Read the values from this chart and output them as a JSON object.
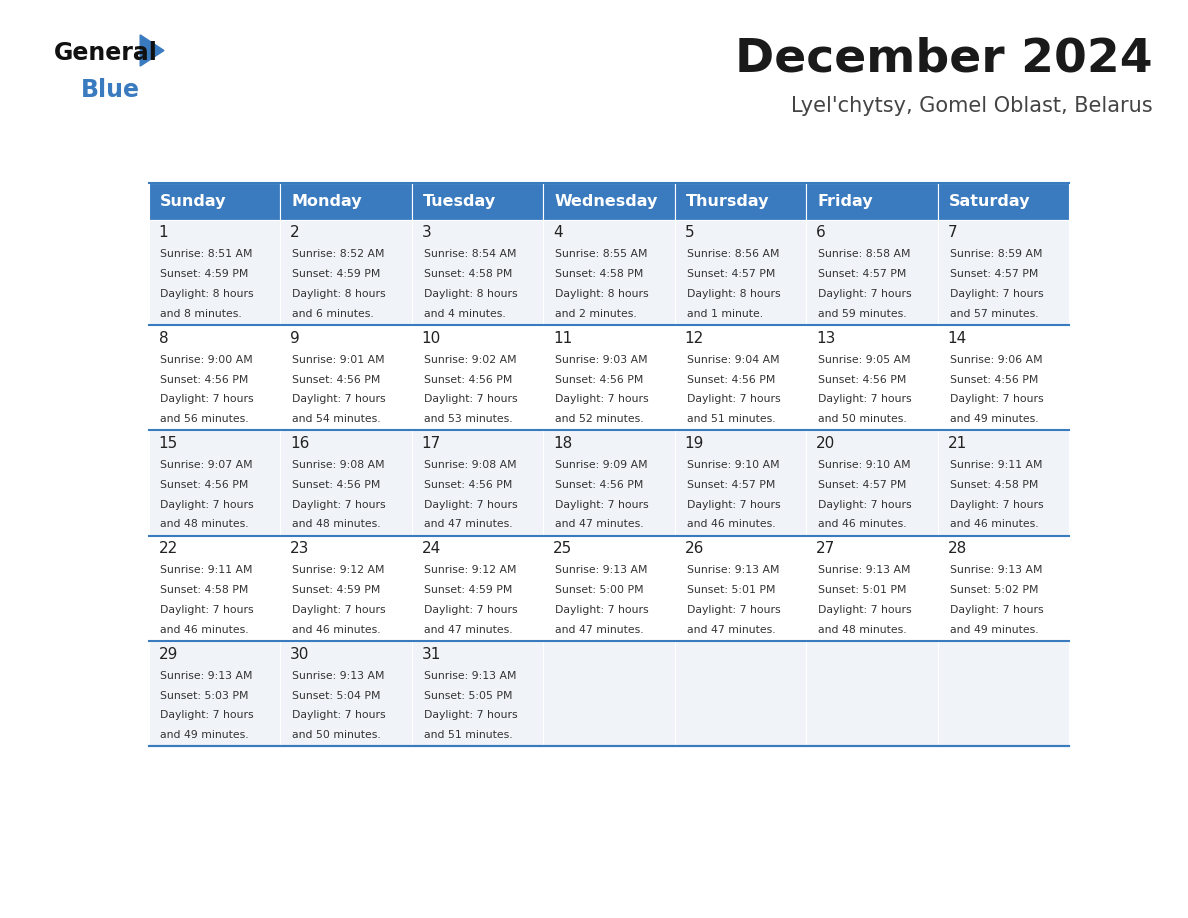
{
  "title": "December 2024",
  "subtitle": "Lyel'chytsy, Gomel Oblast, Belarus",
  "header_bg": "#3a7abf",
  "header_text": "#ffffff",
  "row_bg_odd": "#f0f4f8",
  "row_bg_even": "#ffffff",
  "border_color": "#3a7abf",
  "day_names": [
    "Sunday",
    "Monday",
    "Tuesday",
    "Wednesday",
    "Thursday",
    "Friday",
    "Saturday"
  ],
  "days": [
    {
      "day": 1,
      "col": 0,
      "row": 0,
      "sunrise": "8:51 AM",
      "sunset": "4:59 PM",
      "daylight": "8 hours and 8 minutes."
    },
    {
      "day": 2,
      "col": 1,
      "row": 0,
      "sunrise": "8:52 AM",
      "sunset": "4:59 PM",
      "daylight": "8 hours and 6 minutes."
    },
    {
      "day": 3,
      "col": 2,
      "row": 0,
      "sunrise": "8:54 AM",
      "sunset": "4:58 PM",
      "daylight": "8 hours and 4 minutes."
    },
    {
      "day": 4,
      "col": 3,
      "row": 0,
      "sunrise": "8:55 AM",
      "sunset": "4:58 PM",
      "daylight": "8 hours and 2 minutes."
    },
    {
      "day": 5,
      "col": 4,
      "row": 0,
      "sunrise": "8:56 AM",
      "sunset": "4:57 PM",
      "daylight": "8 hours and 1 minute."
    },
    {
      "day": 6,
      "col": 5,
      "row": 0,
      "sunrise": "8:58 AM",
      "sunset": "4:57 PM",
      "daylight": "7 hours and 59 minutes."
    },
    {
      "day": 7,
      "col": 6,
      "row": 0,
      "sunrise": "8:59 AM",
      "sunset": "4:57 PM",
      "daylight": "7 hours and 57 minutes."
    },
    {
      "day": 8,
      "col": 0,
      "row": 1,
      "sunrise": "9:00 AM",
      "sunset": "4:56 PM",
      "daylight": "7 hours and 56 minutes."
    },
    {
      "day": 9,
      "col": 1,
      "row": 1,
      "sunrise": "9:01 AM",
      "sunset": "4:56 PM",
      "daylight": "7 hours and 54 minutes."
    },
    {
      "day": 10,
      "col": 2,
      "row": 1,
      "sunrise": "9:02 AM",
      "sunset": "4:56 PM",
      "daylight": "7 hours and 53 minutes."
    },
    {
      "day": 11,
      "col": 3,
      "row": 1,
      "sunrise": "9:03 AM",
      "sunset": "4:56 PM",
      "daylight": "7 hours and 52 minutes."
    },
    {
      "day": 12,
      "col": 4,
      "row": 1,
      "sunrise": "9:04 AM",
      "sunset": "4:56 PM",
      "daylight": "7 hours and 51 minutes."
    },
    {
      "day": 13,
      "col": 5,
      "row": 1,
      "sunrise": "9:05 AM",
      "sunset": "4:56 PM",
      "daylight": "7 hours and 50 minutes."
    },
    {
      "day": 14,
      "col": 6,
      "row": 1,
      "sunrise": "9:06 AM",
      "sunset": "4:56 PM",
      "daylight": "7 hours and 49 minutes."
    },
    {
      "day": 15,
      "col": 0,
      "row": 2,
      "sunrise": "9:07 AM",
      "sunset": "4:56 PM",
      "daylight": "7 hours and 48 minutes."
    },
    {
      "day": 16,
      "col": 1,
      "row": 2,
      "sunrise": "9:08 AM",
      "sunset": "4:56 PM",
      "daylight": "7 hours and 48 minutes."
    },
    {
      "day": 17,
      "col": 2,
      "row": 2,
      "sunrise": "9:08 AM",
      "sunset": "4:56 PM",
      "daylight": "7 hours and 47 minutes."
    },
    {
      "day": 18,
      "col": 3,
      "row": 2,
      "sunrise": "9:09 AM",
      "sunset": "4:56 PM",
      "daylight": "7 hours and 47 minutes."
    },
    {
      "day": 19,
      "col": 4,
      "row": 2,
      "sunrise": "9:10 AM",
      "sunset": "4:57 PM",
      "daylight": "7 hours and 46 minutes."
    },
    {
      "day": 20,
      "col": 5,
      "row": 2,
      "sunrise": "9:10 AM",
      "sunset": "4:57 PM",
      "daylight": "7 hours and 46 minutes."
    },
    {
      "day": 21,
      "col": 6,
      "row": 2,
      "sunrise": "9:11 AM",
      "sunset": "4:58 PM",
      "daylight": "7 hours and 46 minutes."
    },
    {
      "day": 22,
      "col": 0,
      "row": 3,
      "sunrise": "9:11 AM",
      "sunset": "4:58 PM",
      "daylight": "7 hours and 46 minutes."
    },
    {
      "day": 23,
      "col": 1,
      "row": 3,
      "sunrise": "9:12 AM",
      "sunset": "4:59 PM",
      "daylight": "7 hours and 46 minutes."
    },
    {
      "day": 24,
      "col": 2,
      "row": 3,
      "sunrise": "9:12 AM",
      "sunset": "4:59 PM",
      "daylight": "7 hours and 47 minutes."
    },
    {
      "day": 25,
      "col": 3,
      "row": 3,
      "sunrise": "9:13 AM",
      "sunset": "5:00 PM",
      "daylight": "7 hours and 47 minutes."
    },
    {
      "day": 26,
      "col": 4,
      "row": 3,
      "sunrise": "9:13 AM",
      "sunset": "5:01 PM",
      "daylight": "7 hours and 47 minutes."
    },
    {
      "day": 27,
      "col": 5,
      "row": 3,
      "sunrise": "9:13 AM",
      "sunset": "5:01 PM",
      "daylight": "7 hours and 48 minutes."
    },
    {
      "day": 28,
      "col": 6,
      "row": 3,
      "sunrise": "9:13 AM",
      "sunset": "5:02 PM",
      "daylight": "7 hours and 49 minutes."
    },
    {
      "day": 29,
      "col": 0,
      "row": 4,
      "sunrise": "9:13 AM",
      "sunset": "5:03 PM",
      "daylight": "7 hours and 49 minutes."
    },
    {
      "day": 30,
      "col": 1,
      "row": 4,
      "sunrise": "9:13 AM",
      "sunset": "5:04 PM",
      "daylight": "7 hours and 50 minutes."
    },
    {
      "day": 31,
      "col": 2,
      "row": 4,
      "sunrise": "9:13 AM",
      "sunset": "5:05 PM",
      "daylight": "7 hours and 51 minutes."
    }
  ],
  "num_rows": 5,
  "logo_triangle_color": "#3a7abf"
}
